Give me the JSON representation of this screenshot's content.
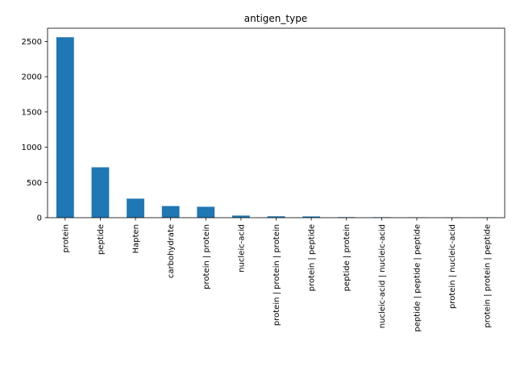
{
  "chart_data": {
    "type": "bar",
    "title": "antigen_type",
    "xlabel": "",
    "ylabel": "",
    "categories": [
      "protein",
      "peptide",
      "Hapten",
      "carbohydrate",
      "protein | protein",
      "nucleic-acid",
      "protein | protein | protein",
      "protein | peptide",
      "peptide | protein",
      "nucleic-acid | nucleic-acid",
      "peptide | peptide | peptide",
      "protein | nucleic-acid",
      "protein | protein | peptide"
    ],
    "values": [
      2560,
      715,
      270,
      165,
      155,
      30,
      20,
      18,
      8,
      7,
      5,
      5,
      4
    ],
    "ylim": [
      0,
      2688
    ],
    "yticks": [
      0,
      500,
      1000,
      1500,
      2000,
      2500
    ],
    "color": "#1f77b4",
    "grid": false,
    "legend": "none"
  }
}
